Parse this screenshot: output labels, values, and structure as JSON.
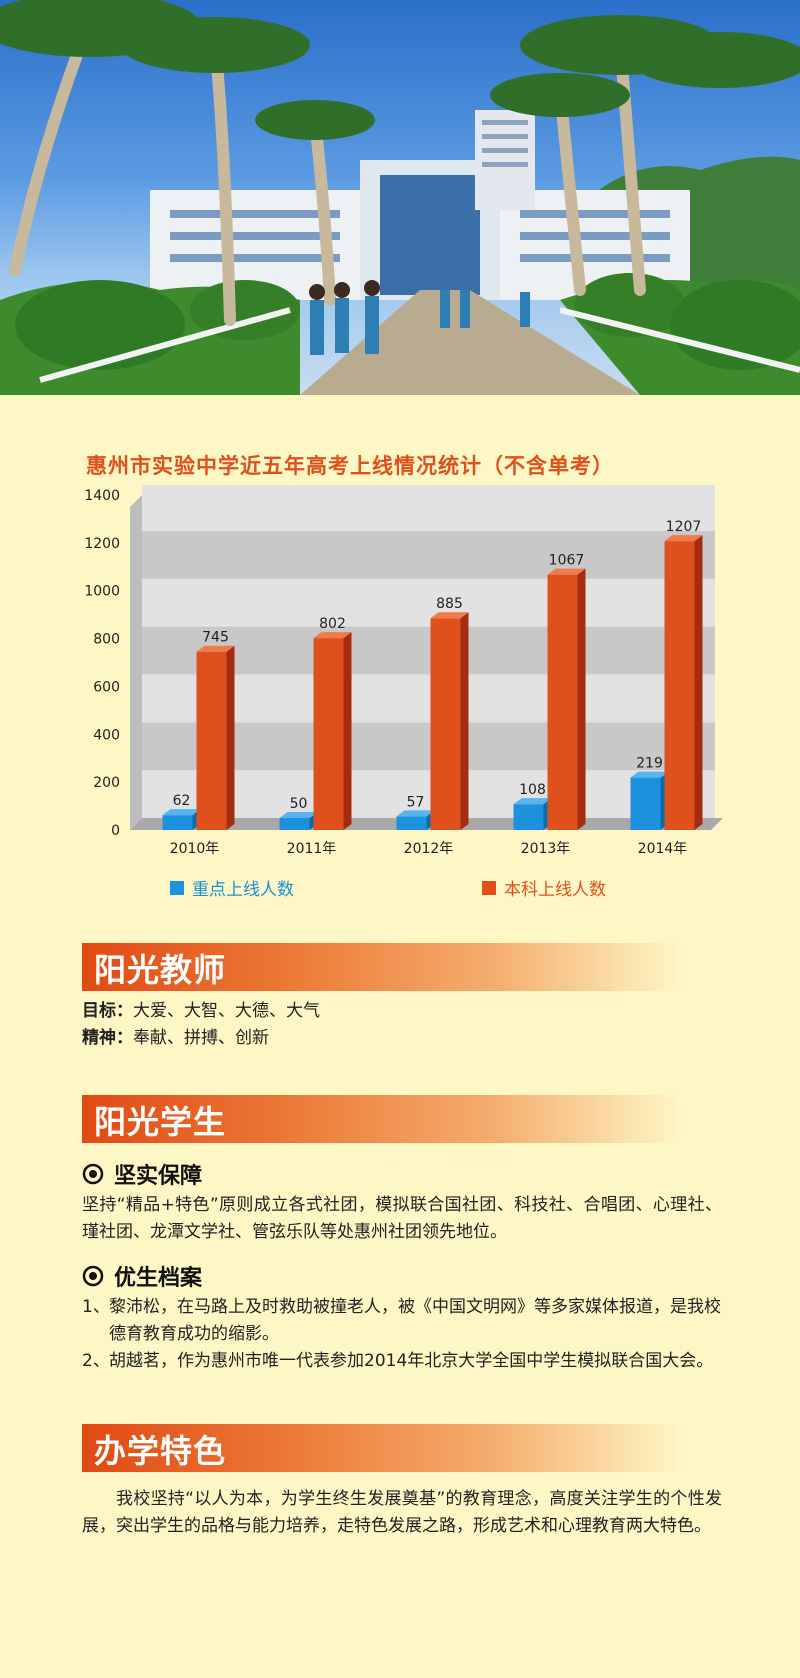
{
  "chart_title": "惠州市实验中学近五年高考上线情况统计（不含单考）",
  "chart_data": {
    "type": "bar",
    "title": "惠州市实验中学近五年高考上线情况统计（不含单考）",
    "categories": [
      "2010年",
      "2011年",
      "2012年",
      "2013年",
      "2014年"
    ],
    "series": [
      {
        "name": "重点上线人数",
        "values": [
          62,
          50,
          57,
          108,
          219
        ],
        "color": "#1c92dd"
      },
      {
        "name": "本科上线人数",
        "values": [
          745,
          802,
          885,
          1067,
          1207
        ],
        "color": "#e0501c"
      }
    ],
    "y_ticks": [
      0,
      200,
      400,
      600,
      800,
      1000,
      1200,
      1400
    ],
    "ylim": [
      0,
      1400
    ],
    "grid": "alternating horizontal bands",
    "legend_position": "bottom"
  },
  "legend": {
    "key": "重点上线人数",
    "regular": "本科上线人数"
  },
  "teachers": {
    "title": "阳光教师",
    "goal_label": "目标：",
    "goal_text": "大爱、大智、大德、大气",
    "spirit_label": "精神：",
    "spirit_text": "奉献、拼搏、创新"
  },
  "students": {
    "title": "阳光学生",
    "sub1": "坚实保障",
    "sub1_text": "坚持“精品+特色”原则成立各式社团，模拟联合国社团、科技社、合唱团、心理社、瑾社团、龙潭文学社、管弦乐队等处惠州社团领先地位。",
    "sub2": "优生档案",
    "items": [
      {
        "num": "1、",
        "text": "黎沛松，在马路上及时救助被撞老人，被《中国文明网》等多家媒体报道，是我校德育教育成功的缩影。"
      },
      {
        "num": "2、",
        "text": "胡越茗，作为惠州市唯一代表参加2014年北京大学全国中学生模拟联合国大会。"
      }
    ]
  },
  "features": {
    "title": "办学特色",
    "text": "我校坚持“以人为本，为学生终生发展奠基”的教育理念，高度关注学生的个性发展，突出学生的品格与能力培养，走特色发展之路，形成艺术和心理教育两大特色。"
  }
}
